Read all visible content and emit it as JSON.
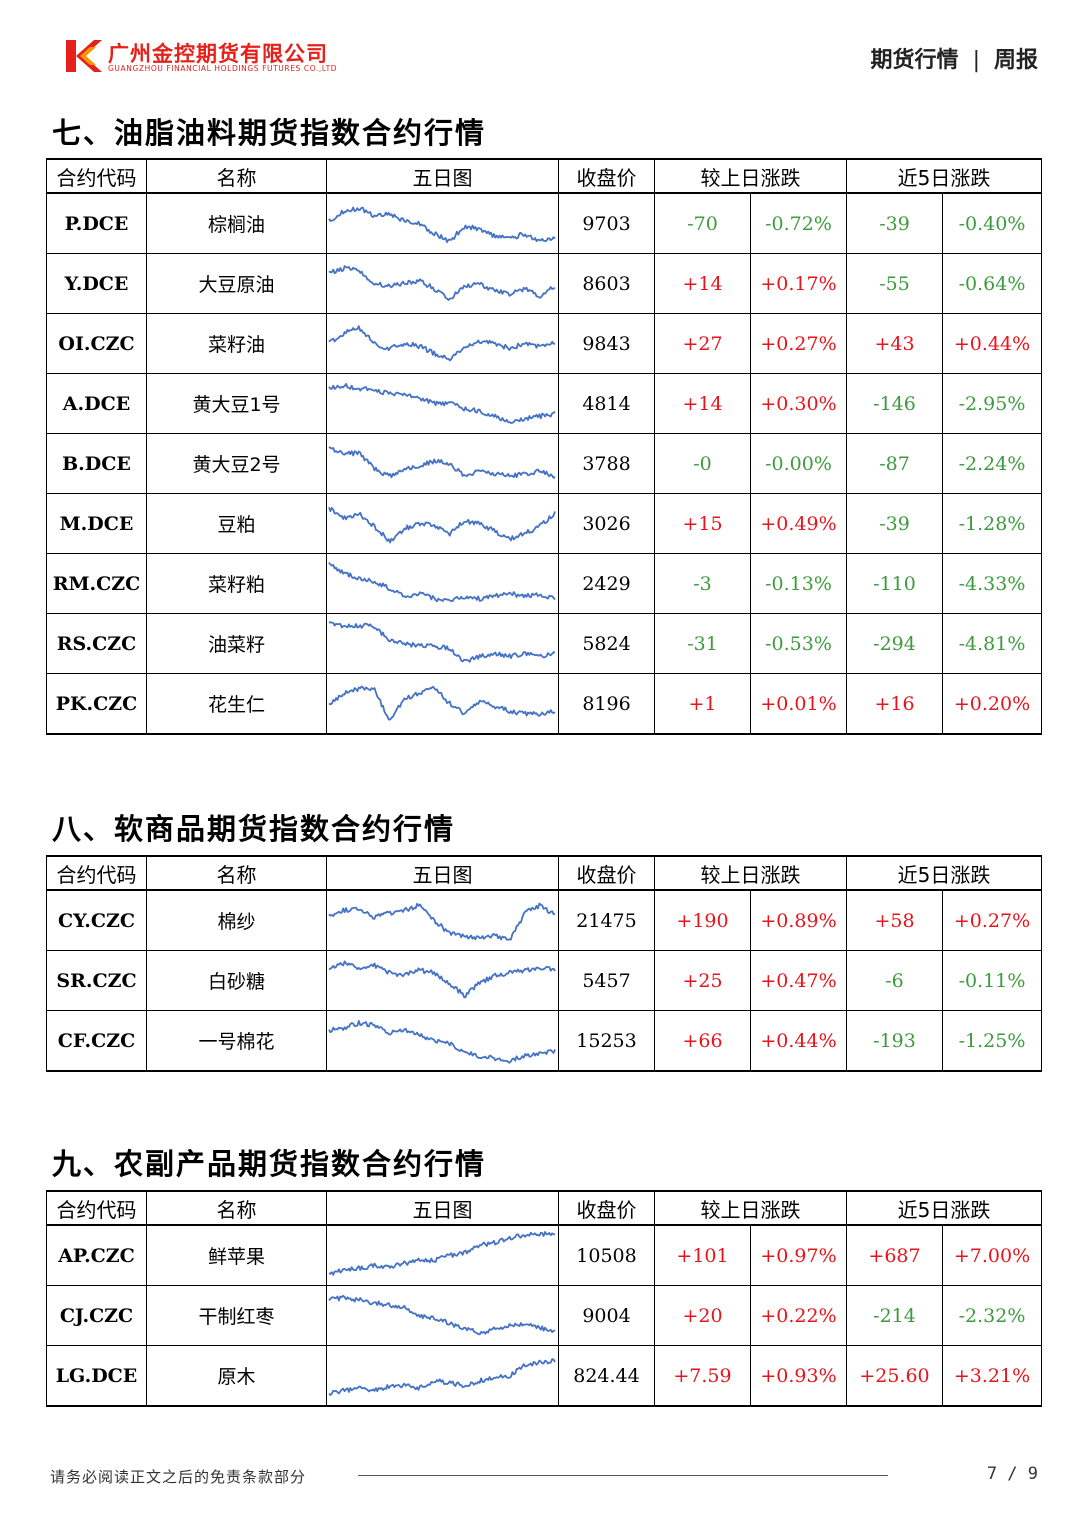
{
  "header": {
    "company_cn": "广州金控期货有限公司",
    "company_en": "GUANGZHOU FINANCIAL HOLDINGS FUTURES CO.,LTD",
    "report_category": "期货行情",
    "separator": "|",
    "report_type": "周报",
    "colors": {
      "brand_red": "#e6201a",
      "brand_orange": "#f39800",
      "up": "#e8131b",
      "down": "#3d9a3d",
      "sparkline": "#4472c4"
    }
  },
  "columns": {
    "code": "合约代码",
    "name": "名称",
    "chart": "五日图",
    "close": "收盘价",
    "daily_change": "较上日涨跌",
    "five_day_change": "近5日涨跌"
  },
  "sections": [
    {
      "title": "七、油脂油料期货指数合约行情",
      "rows": [
        {
          "code": "P.DCE",
          "name": "棕榈油",
          "close": "9703",
          "d_chg": "-70",
          "d_pct": "-0.72%",
          "w_chg": "-39",
          "w_pct": "-0.40%"
        },
        {
          "code": "Y.DCE",
          "name": "大豆原油",
          "close": "8603",
          "d_chg": "+14",
          "d_pct": "+0.17%",
          "w_chg": "-55",
          "w_pct": "-0.64%"
        },
        {
          "code": "OI.CZC",
          "name": "菜籽油",
          "close": "9843",
          "d_chg": "+27",
          "d_pct": "+0.27%",
          "w_chg": "+43",
          "w_pct": "+0.44%"
        },
        {
          "code": "A.DCE",
          "name": "黄大豆1号",
          "close": "4814",
          "d_chg": "+14",
          "d_pct": "+0.30%",
          "w_chg": "-146",
          "w_pct": "-2.95%"
        },
        {
          "code": "B.DCE",
          "name": "黄大豆2号",
          "close": "3788",
          "d_chg": "-0",
          "d_pct": "-0.00%",
          "w_chg": "-87",
          "w_pct": "-2.24%"
        },
        {
          "code": "M.DCE",
          "name": "豆粕",
          "close": "3026",
          "d_chg": "+15",
          "d_pct": "+0.49%",
          "w_chg": "-39",
          "w_pct": "-1.28%"
        },
        {
          "code": "RM.CZC",
          "name": "菜籽粕",
          "close": "2429",
          "d_chg": "-3",
          "d_pct": "-0.13%",
          "w_chg": "-110",
          "w_pct": "-4.33%"
        },
        {
          "code": "RS.CZC",
          "name": "油菜籽",
          "close": "5824",
          "d_chg": "-31",
          "d_pct": "-0.53%",
          "w_chg": "-294",
          "w_pct": "-4.81%"
        },
        {
          "code": "PK.CZC",
          "name": "花生仁",
          "close": "8196",
          "d_chg": "+1",
          "d_pct": "+0.01%",
          "w_chg": "+16",
          "w_pct": "+0.20%"
        }
      ]
    },
    {
      "title": "八、软商品期货指数合约行情",
      "rows": [
        {
          "code": "CY.CZC",
          "name": "棉纱",
          "close": "21475",
          "d_chg": "+190",
          "d_pct": "+0.89%",
          "w_chg": "+58",
          "w_pct": "+0.27%"
        },
        {
          "code": "SR.CZC",
          "name": "白砂糖",
          "close": "5457",
          "d_chg": "+25",
          "d_pct": "+0.47%",
          "w_chg": "-6",
          "w_pct": "-0.11%"
        },
        {
          "code": "CF.CZC",
          "name": "一号棉花",
          "close": "15253",
          "d_chg": "+66",
          "d_pct": "+0.44%",
          "w_chg": "-193",
          "w_pct": "-1.25%"
        }
      ]
    },
    {
      "title": "九、农副产品期货指数合约行情",
      "rows": [
        {
          "code": "AP.CZC",
          "name": "鲜苹果",
          "close": "10508",
          "d_chg": "+101",
          "d_pct": "+0.97%",
          "w_chg": "+687",
          "w_pct": "+7.00%"
        },
        {
          "code": "CJ.CZC",
          "name": "干制红枣",
          "close": "9004",
          "d_chg": "+20",
          "d_pct": "+0.22%",
          "w_chg": "-214",
          "w_pct": "-2.32%"
        },
        {
          "code": "LG.DCE",
          "name": "原木",
          "close": "824.44",
          "d_chg": "+7.59",
          "d_pct": "+0.93%",
          "w_chg": "+25.60",
          "w_pct": "+3.21%"
        }
      ]
    }
  ],
  "footer": {
    "disclaimer": "请务必阅读正文之后的免责条款部分",
    "page": "7 / 9"
  }
}
